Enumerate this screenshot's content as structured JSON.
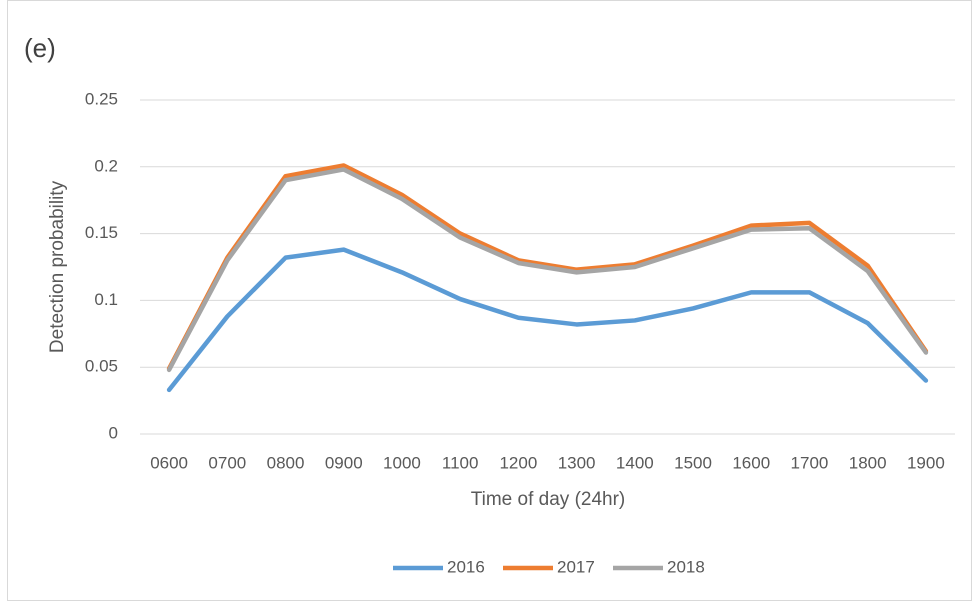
{
  "chart_data": {
    "type": "line",
    "title": "(e)",
    "x_label": "Time of day (24hr)",
    "y_label": "Detection probability",
    "categories": [
      "0600",
      "0700",
      "0800",
      "0900",
      "1000",
      "1100",
      "1200",
      "1300",
      "1400",
      "1500",
      "1600",
      "1700",
      "1800",
      "1900"
    ],
    "series": [
      {
        "name": "2016",
        "color": "#5b9bd5",
        "values": [
          0.033,
          0.088,
          0.132,
          0.138,
          0.121,
          0.101,
          0.087,
          0.082,
          0.085,
          0.094,
          0.106,
          0.106,
          0.083,
          0.04
        ]
      },
      {
        "name": "2017",
        "color": "#ed7d31",
        "values": [
          0.049,
          0.132,
          0.193,
          0.201,
          0.179,
          0.15,
          0.13,
          0.123,
          0.127,
          0.141,
          0.156,
          0.158,
          0.126,
          0.062
        ]
      },
      {
        "name": "2018",
        "color": "#a5a5a5",
        "values": [
          0.048,
          0.13,
          0.19,
          0.198,
          0.176,
          0.147,
          0.128,
          0.121,
          0.125,
          0.139,
          0.153,
          0.154,
          0.122,
          0.061
        ]
      }
    ],
    "ylim": [
      0,
      0.25
    ],
    "yticks": [
      0,
      0.05,
      0.1,
      0.15,
      0.2,
      0.25
    ],
    "grid": true,
    "legend": "bottom"
  }
}
